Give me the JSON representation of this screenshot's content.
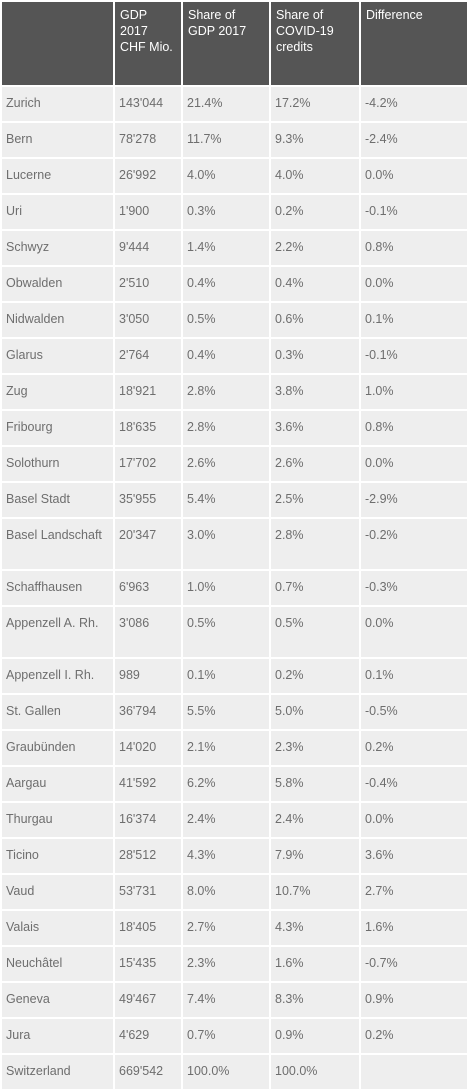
{
  "table": {
    "headers": [
      "",
      "GDP 2017 CHF Mio.",
      "Share of GDP 2017",
      "Share of COVID-19 credits",
      "Difference"
    ],
    "rows": [
      [
        "Zurich",
        "143'044",
        "21.4%",
        "17.2%",
        "-4.2%"
      ],
      [
        "Bern",
        "78'278",
        "11.7%",
        "9.3%",
        "-2.4%"
      ],
      [
        "Lucerne",
        "26'992",
        "4.0%",
        "4.0%",
        "0.0%"
      ],
      [
        "Uri",
        "1'900",
        "0.3%",
        "0.2%",
        "-0.1%"
      ],
      [
        "Schwyz",
        "9'444",
        "1.4%",
        "2.2%",
        "0.8%"
      ],
      [
        "Obwalden",
        "2'510",
        "0.4%",
        "0.4%",
        "0.0%"
      ],
      [
        "Nidwalden",
        "3'050",
        "0.5%",
        "0.6%",
        "0.1%"
      ],
      [
        "Glarus",
        "2'764",
        "0.4%",
        "0.3%",
        "-0.1%"
      ],
      [
        "Zug",
        "18'921",
        "2.8%",
        "3.8%",
        "1.0%"
      ],
      [
        "Fribourg",
        "18'635",
        "2.8%",
        "3.6%",
        "0.8%"
      ],
      [
        "Solothurn",
        "17'702",
        "2.6%",
        "2.6%",
        "0.0%"
      ],
      [
        "Basel Stadt",
        "35'955",
        "5.4%",
        "2.5%",
        "-2.9%"
      ],
      [
        "Basel Landschaft",
        "20'347",
        "3.0%",
        "2.8%",
        "-0.2%"
      ],
      [
        "Schaffhausen",
        "6'963",
        "1.0%",
        "0.7%",
        "-0.3%"
      ],
      [
        "Appenzell A. Rh.",
        "3'086",
        "0.5%",
        "0.5%",
        "0.0%"
      ],
      [
        "Appenzell I. Rh.",
        "989",
        "0.1%",
        "0.2%",
        "0.1%"
      ],
      [
        "St. Gallen",
        "36'794",
        "5.5%",
        "5.0%",
        "-0.5%"
      ],
      [
        "Graubünden",
        "14'020",
        "2.1%",
        "2.3%",
        "0.2%"
      ],
      [
        "Aargau",
        "41'592",
        "6.2%",
        "5.8%",
        "-0.4%"
      ],
      [
        "Thurgau",
        "16'374",
        "2.4%",
        "2.4%",
        "0.0%"
      ],
      [
        "Ticino",
        "28'512",
        "4.3%",
        "7.9%",
        "3.6%"
      ],
      [
        "Vaud",
        "53'731",
        "8.0%",
        "10.7%",
        "2.7%"
      ],
      [
        "Valais",
        "18'405",
        "2.7%",
        "4.3%",
        "1.6%"
      ],
      [
        "Neuchâtel",
        "15'435",
        "2.3%",
        "1.6%",
        "-0.7%"
      ],
      [
        "Geneva",
        "49'467",
        "7.4%",
        "8.3%",
        "0.9%"
      ],
      [
        "Jura",
        "4'629",
        "0.7%",
        "0.9%",
        "0.2%"
      ],
      [
        "Switzerland",
        "669'542",
        "100.0%",
        "100.0%",
        ""
      ]
    ]
  }
}
